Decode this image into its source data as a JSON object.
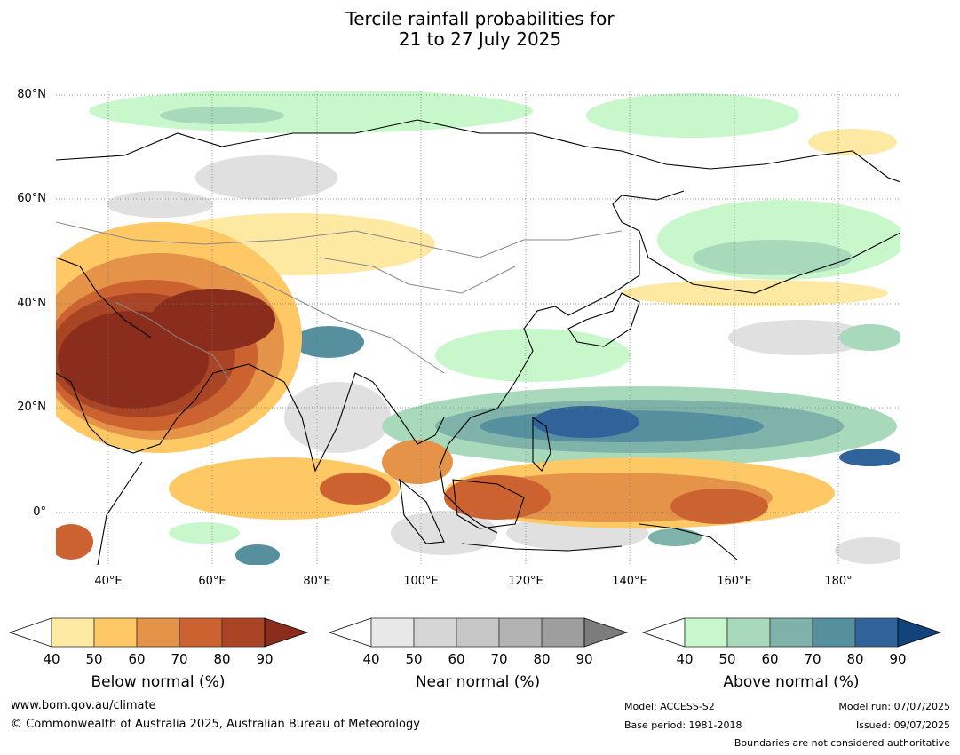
{
  "title_line1": "Tercile rainfall probabilities for",
  "title_line2": "21 to 27 July 2025",
  "map": {
    "lat_labels": [
      "80°N",
      "60°N",
      "40°N",
      "20°N",
      "0°"
    ],
    "lon_labels": [
      "40°E",
      "60°E",
      "80°E",
      "100°E",
      "120°E",
      "140°E",
      "160°E",
      "180°"
    ]
  },
  "colorbars": [
    {
      "title": "Below normal (%)",
      "ticks": [
        "40",
        "50",
        "60",
        "70",
        "80",
        "90"
      ],
      "colors": [
        "#ffffff",
        "#fde9a1",
        "#fec865",
        "#e49349",
        "#cc6230",
        "#a94424",
        "#8a2d1c"
      ]
    },
    {
      "title": "Near normal (%)",
      "ticks": [
        "40",
        "50",
        "60",
        "70",
        "80",
        "90"
      ],
      "colors": [
        "#ffffff",
        "#e8e8e8",
        "#d6d6d6",
        "#c6c6c6",
        "#b3b3b3",
        "#9e9e9e",
        "#7c7c7c"
      ]
    },
    {
      "title": "Above normal (%)",
      "ticks": [
        "40",
        "50",
        "60",
        "70",
        "80",
        "90"
      ],
      "colors": [
        "#ffffff",
        "#c9f7cc",
        "#a8d9bb",
        "#7fb3aa",
        "#568f9e",
        "#2f6399",
        "#12437a"
      ]
    }
  ],
  "footer": {
    "website": "www.bom.gov.au/climate",
    "copyright": "© Commonwealth of Australia 2025, Australian Bureau of Meteorology",
    "model": "Model: ACCESS-S2",
    "base_period": "Base period: 1981-2018",
    "model_run": "Model run: 07/07/2025",
    "issued": "Issued: 09/07/2025",
    "boundaries": "Boundaries are not considered authoritative"
  }
}
